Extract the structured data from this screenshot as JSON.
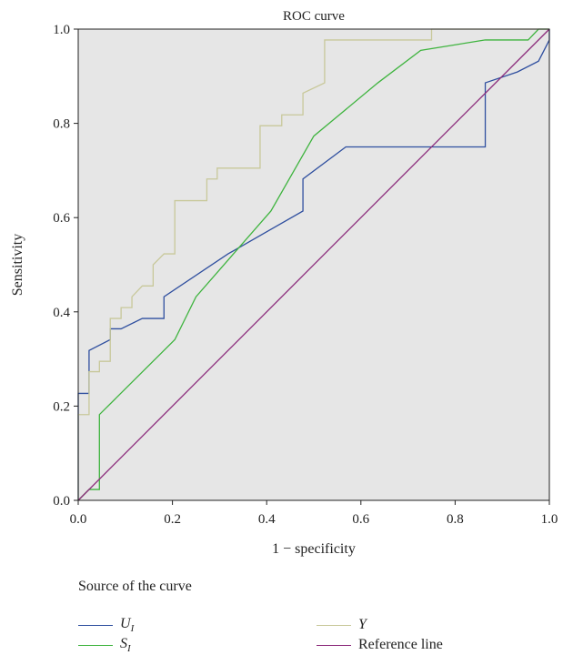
{
  "chart_data": {
    "type": "line",
    "title": "ROC curve",
    "xlabel": "1 − specificity",
    "ylabel": "Sensitivity",
    "xlim": [
      0.0,
      1.0
    ],
    "ylim": [
      0.0,
      1.0
    ],
    "x_ticks": [
      "0.0",
      "0.2",
      "0.4",
      "0.6",
      "0.8",
      "1.0"
    ],
    "y_ticks": [
      "0.0",
      "0.2",
      "0.4",
      "0.6",
      "0.8",
      "1.0"
    ],
    "grid": false,
    "background": "#e6e6e6",
    "legend_title": "Source of the curve",
    "legend_placement": "bottom",
    "series": [
      {
        "name": "U_I",
        "label_main": "U",
        "label_sub": "I",
        "color": "#2f4f9f",
        "points": [
          [
            0.0,
            0.0
          ],
          [
            0.0,
            0.227
          ],
          [
            0.023,
            0.227
          ],
          [
            0.023,
            0.318
          ],
          [
            0.068,
            0.341
          ],
          [
            0.068,
            0.364
          ],
          [
            0.091,
            0.364
          ],
          [
            0.136,
            0.386
          ],
          [
            0.182,
            0.386
          ],
          [
            0.182,
            0.432
          ],
          [
            0.318,
            0.523
          ],
          [
            0.477,
            0.614
          ],
          [
            0.477,
            0.682
          ],
          [
            0.568,
            0.75
          ],
          [
            0.864,
            0.75
          ],
          [
            0.864,
            0.886
          ],
          [
            0.932,
            0.909
          ],
          [
            0.977,
            0.932
          ],
          [
            1.0,
            0.977
          ],
          [
            1.0,
            1.0
          ]
        ]
      },
      {
        "name": "S_I",
        "label_main": "S",
        "label_sub": "I",
        "color": "#3fb43f",
        "points": [
          [
            0.0,
            0.0
          ],
          [
            0.023,
            0.023
          ],
          [
            0.045,
            0.023
          ],
          [
            0.045,
            0.182
          ],
          [
            0.205,
            0.341
          ],
          [
            0.25,
            0.432
          ],
          [
            0.409,
            0.614
          ],
          [
            0.5,
            0.773
          ],
          [
            0.636,
            0.886
          ],
          [
            0.727,
            0.955
          ],
          [
            0.864,
            0.977
          ],
          [
            0.955,
            0.977
          ],
          [
            0.977,
            1.0
          ],
          [
            1.0,
            1.0
          ]
        ]
      },
      {
        "name": "Y",
        "label_main": "Y",
        "label_sub": "",
        "color": "#c8c89a",
        "points": [
          [
            0.0,
            0.0
          ],
          [
            0.0,
            0.182
          ],
          [
            0.023,
            0.182
          ],
          [
            0.023,
            0.273
          ],
          [
            0.045,
            0.273
          ],
          [
            0.045,
            0.295
          ],
          [
            0.068,
            0.295
          ],
          [
            0.068,
            0.386
          ],
          [
            0.091,
            0.386
          ],
          [
            0.091,
            0.409
          ],
          [
            0.114,
            0.409
          ],
          [
            0.114,
            0.432
          ],
          [
            0.136,
            0.455
          ],
          [
            0.159,
            0.455
          ],
          [
            0.159,
            0.5
          ],
          [
            0.182,
            0.523
          ],
          [
            0.205,
            0.523
          ],
          [
            0.205,
            0.636
          ],
          [
            0.273,
            0.636
          ],
          [
            0.273,
            0.682
          ],
          [
            0.295,
            0.682
          ],
          [
            0.295,
            0.705
          ],
          [
            0.386,
            0.705
          ],
          [
            0.386,
            0.795
          ],
          [
            0.432,
            0.795
          ],
          [
            0.432,
            0.818
          ],
          [
            0.477,
            0.818
          ],
          [
            0.477,
            0.864
          ],
          [
            0.523,
            0.886
          ],
          [
            0.523,
            0.977
          ],
          [
            0.75,
            0.977
          ],
          [
            0.75,
            1.0
          ],
          [
            1.0,
            1.0
          ]
        ]
      },
      {
        "name": "Reference line",
        "label_main": "Reference line",
        "label_sub": "",
        "color": "#8b2a7a",
        "points": [
          [
            0.0,
            0.0
          ],
          [
            1.0,
            1.0
          ]
        ]
      }
    ]
  }
}
